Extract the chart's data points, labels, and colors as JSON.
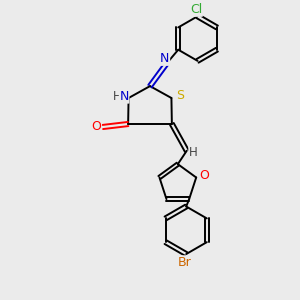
{
  "background_color": "#ebebeb",
  "bond_color": "#000000",
  "atom_colors": {
    "N": "#0000cc",
    "S": "#ccaa00",
    "O": "#ff0000",
    "Cl": "#33aa33",
    "Br": "#cc6600",
    "H": "#444444"
  },
  "figsize": [
    3.0,
    3.0
  ],
  "dpi": 100
}
